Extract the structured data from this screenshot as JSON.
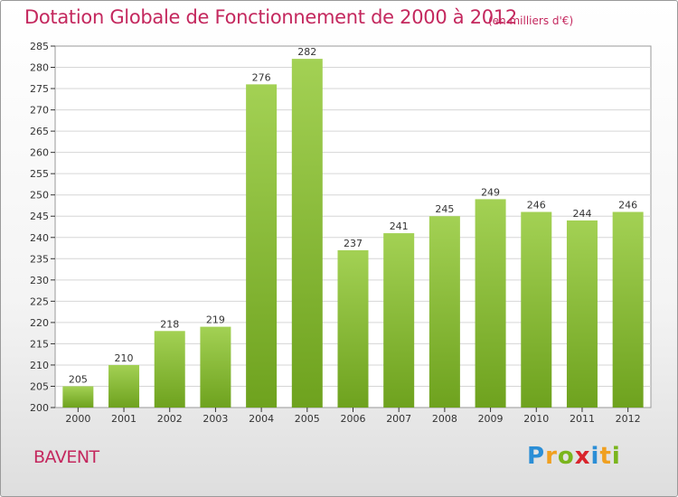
{
  "header": {
    "title": "Dotation Globale de Fonctionnement de 2000 à 2012",
    "unit": "(en milliers d'€)"
  },
  "footer": {
    "commune": "BAVENT",
    "logo_text": "Proxiti",
    "logo_letters": [
      {
        "ch": "P",
        "color": "#2b8ed6"
      },
      {
        "ch": "r",
        "color": "#f0a020"
      },
      {
        "ch": "o",
        "color": "#7ab51d"
      },
      {
        "ch": "x",
        "color": "#d9242c"
      },
      {
        "ch": "i",
        "color": "#2b8ed6"
      },
      {
        "ch": "t",
        "color": "#f0a020"
      },
      {
        "ch": "i",
        "color": "#7ab51d"
      }
    ]
  },
  "colors": {
    "bar_light": "#a3d154",
    "bar_dark": "#6ea21e",
    "title": "#c4285e",
    "grid": "#d6d6d6",
    "axis": "#000000"
  },
  "chart_data": {
    "type": "bar",
    "title": "Dotation Globale de Fonctionnement de 2000 à 2012",
    "xlabel": "",
    "ylabel": "",
    "categories": [
      "2000",
      "2001",
      "2002",
      "2003",
      "2004",
      "2005",
      "2006",
      "2007",
      "2008",
      "2009",
      "2010",
      "2011",
      "2012"
    ],
    "values": [
      205,
      210,
      218,
      219,
      276,
      282,
      237,
      241,
      245,
      249,
      246,
      244,
      246
    ],
    "ylim": [
      200,
      285
    ],
    "yticks": [
      200,
      205,
      210,
      215,
      220,
      225,
      230,
      235,
      240,
      245,
      250,
      255,
      260,
      265,
      270,
      275,
      280,
      285
    ],
    "grid": true,
    "data_labels": true
  }
}
